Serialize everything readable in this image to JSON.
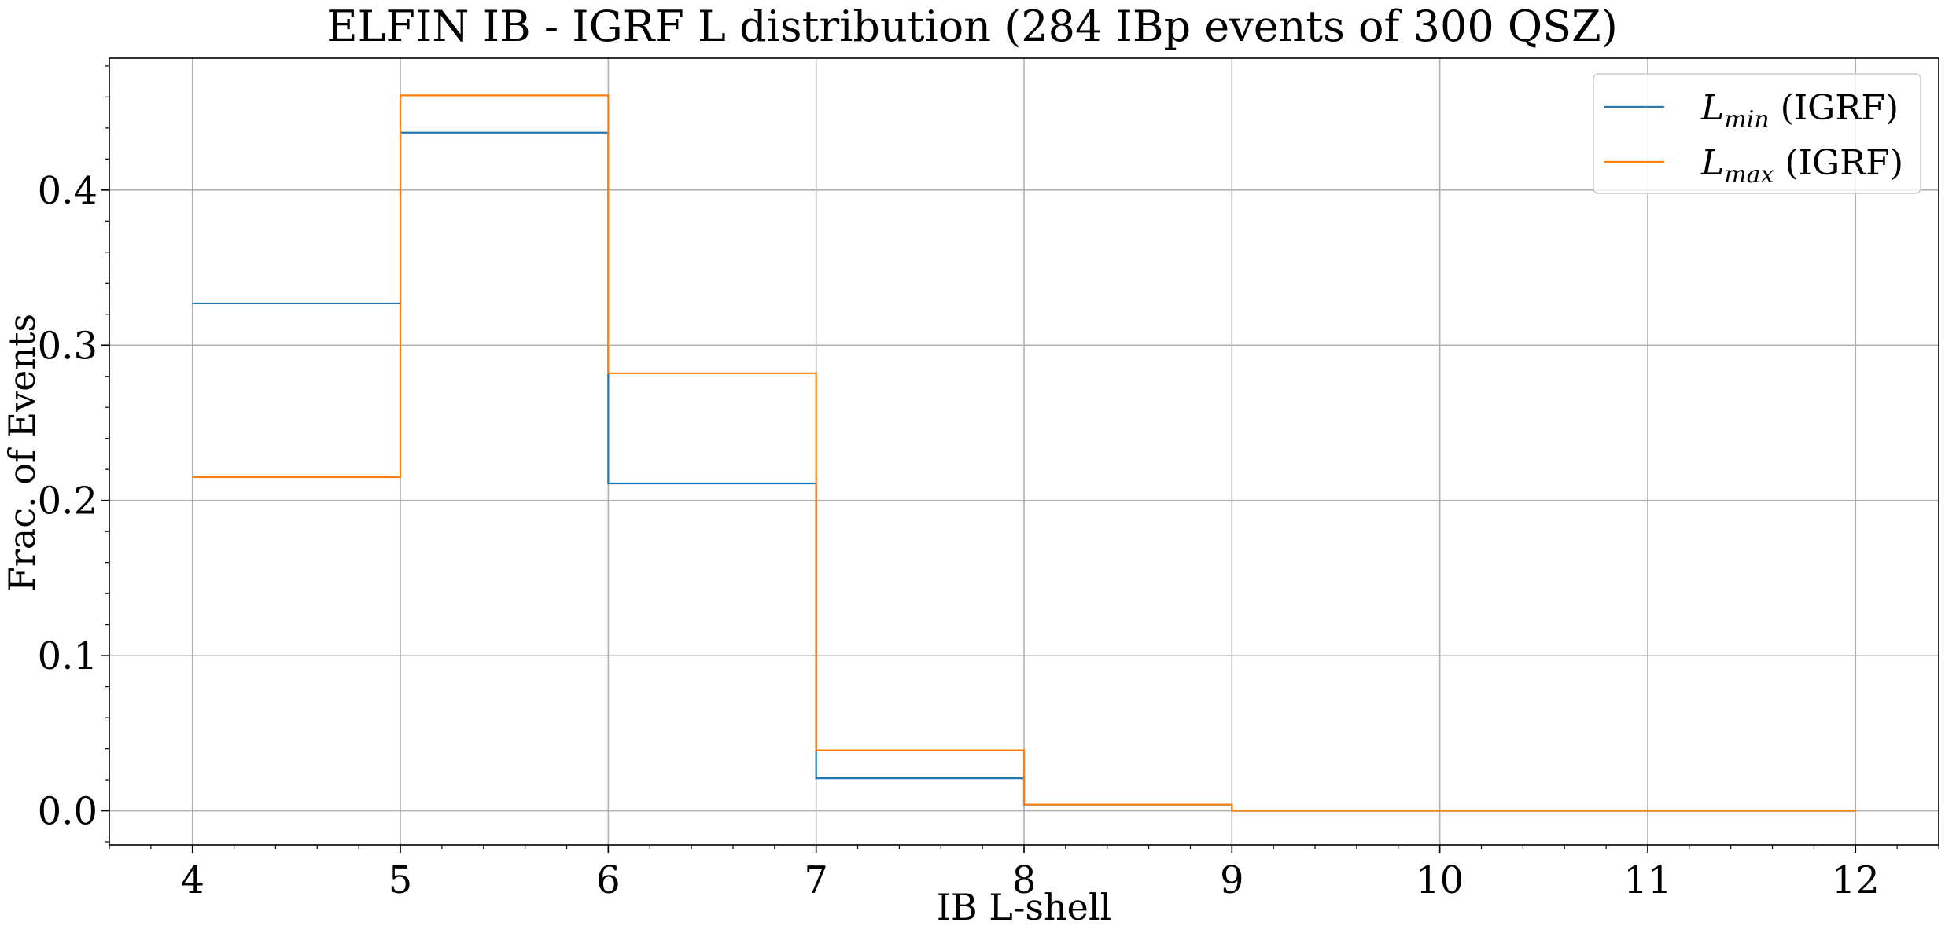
{
  "chart_data": {
    "type": "line",
    "drawstyle": "steps-post",
    "title": "ELFIN IB - IGRF L distribution (284 IBp events of 300 QSZ)",
    "xlabel": "IB L-shell",
    "ylabel": "Frac. of Events",
    "xlim": [
      3.6,
      12.4
    ],
    "ylim": [
      -0.022,
      0.485
    ],
    "x_ticks": [
      4,
      5,
      6,
      7,
      8,
      9,
      10,
      11,
      12
    ],
    "x_tick_labels": [
      "4",
      "5",
      "6",
      "7",
      "8",
      "9",
      "10",
      "11",
      "12"
    ],
    "y_ticks": [
      0.0,
      0.1,
      0.2,
      0.3,
      0.4
    ],
    "y_tick_labels": [
      "0.0",
      "0.1",
      "0.2",
      "0.3",
      "0.4"
    ],
    "grid": true,
    "legend_position": "top-right",
    "bin_edges": [
      4,
      5,
      6,
      7,
      8,
      9,
      10,
      11,
      12
    ],
    "series": [
      {
        "name": "L_min (IGRF)",
        "legend_main": "L",
        "legend_sub": "min",
        "legend_suffix": " (IGRF)",
        "color": "#1f77b4",
        "values": [
          0.327,
          0.437,
          0.211,
          0.021,
          0.004,
          0.0,
          0.0,
          0.0
        ]
      },
      {
        "name": "L_max (IGRF)",
        "legend_main": "L",
        "legend_sub": "max",
        "legend_suffix": " (IGRF)",
        "color": "#ff7f0e",
        "values": [
          0.215,
          0.461,
          0.282,
          0.039,
          0.004,
          0.0,
          0.0,
          0.0
        ]
      }
    ]
  }
}
